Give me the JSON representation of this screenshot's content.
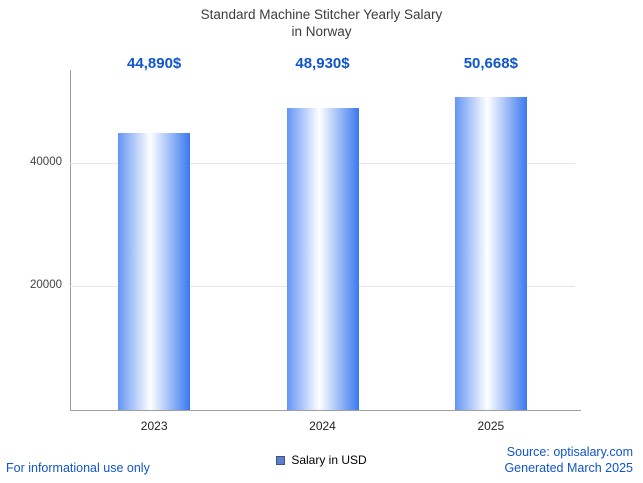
{
  "title": {
    "line1": "Standard Machine Stitcher Yearly Salary",
    "line2": "in Norway"
  },
  "accent_color": "#1155cc",
  "chart_data": {
    "type": "bar",
    "title": "Standard Machine Stitcher Yearly Salary in Norway",
    "categories": [
      "2023",
      "2024",
      "2025"
    ],
    "values": [
      44890,
      48930,
      50668
    ],
    "value_labels": [
      "44,890$",
      "48,930$",
      "50,668$"
    ],
    "xlabel": "",
    "ylabel": "",
    "ylim": [
      0,
      55000
    ],
    "yticks": [
      20000,
      40000
    ],
    "grid": true,
    "legend": [
      "Salary in USD"
    ],
    "legend_position": "bottom",
    "bar_gradient": [
      "#6495f3",
      "#ffffff",
      "#3a78f0"
    ]
  },
  "legend": {
    "label": "Salary in USD",
    "swatch_color": "#5b7fd0"
  },
  "footer": {
    "disclaimer": "For informational use only",
    "source": "Source: optisalary.com",
    "generated": "Generated March 2025"
  }
}
